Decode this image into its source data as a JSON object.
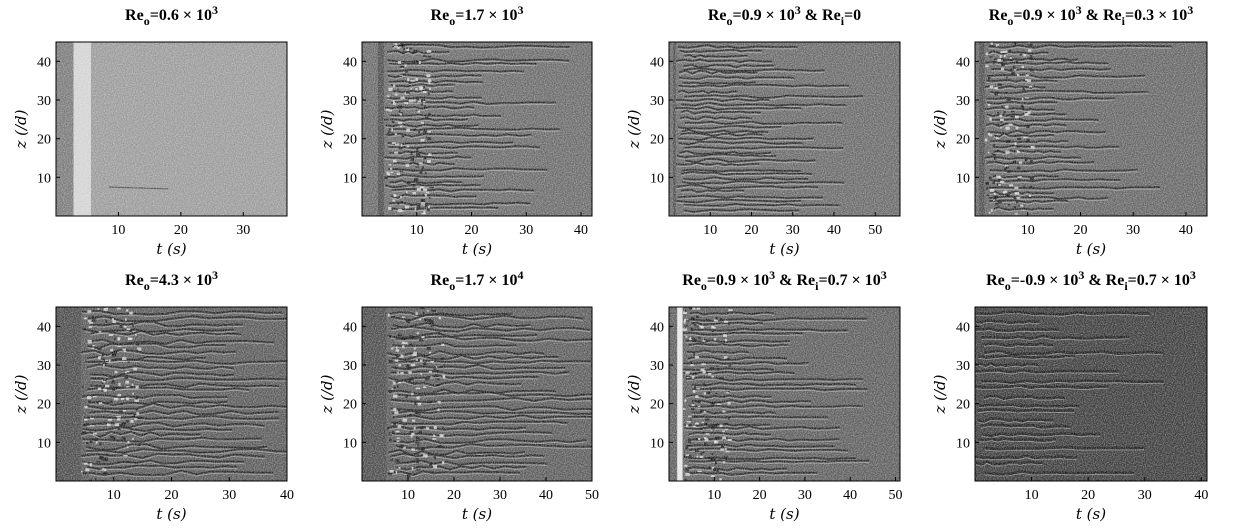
{
  "chart_data": [
    {
      "type": "heatmap",
      "title": {
        "base": "Re",
        "sub": "o",
        "text": "=0.6 × 10",
        "sup": "3"
      },
      "xlabel": "t (s)",
      "ylabel": "z (/d)",
      "xticks": [
        "10",
        "20",
        "30"
      ],
      "yticks": [
        "10",
        "20",
        "30",
        "40"
      ],
      "xlim": [
        0,
        37
      ],
      "ylim": [
        0,
        45
      ],
      "band_t": [
        2.8,
        5.6
      ],
      "grid": false
    },
    {
      "type": "heatmap",
      "title": {
        "base": "Re",
        "sub": "o",
        "text": "=1.7 × 10",
        "sup": "3"
      },
      "xlabel": "t (s)",
      "ylabel": "z (/d)",
      "xticks": [
        "10",
        "20",
        "30",
        "40"
      ],
      "yticks": [
        "10",
        "20",
        "30",
        "40"
      ],
      "xlim": [
        0,
        42
      ],
      "ylim": [
        0,
        45
      ],
      "band_t": [
        2.9,
        4.0
      ],
      "grid": false
    },
    {
      "type": "heatmap",
      "title": {
        "base": "Re",
        "sub": "o",
        "text": "=0.9 × 10",
        "sup": "3",
        "text2": " & Re",
        "sub2": "i",
        "text3": "=0"
      },
      "xlabel": "t (s)",
      "ylabel": "z (/d)",
      "xticks": [
        "10",
        "20",
        "30",
        "40",
        "50"
      ],
      "yticks": [
        "10",
        "20",
        "30",
        "40"
      ],
      "xlim": [
        0,
        56
      ],
      "ylim": [
        0,
        45
      ],
      "band_t": [
        1.0,
        1.6
      ],
      "grid": false
    },
    {
      "type": "heatmap",
      "title": {
        "base": "Re",
        "sub": "o",
        "text": "=0.9 × 10",
        "sup": "3",
        "text2": " & Re",
        "sub2": "i",
        "text3": "=0.3 × 10",
        "sup2": "3"
      },
      "xlabel": "t (s)",
      "ylabel": "z (/d)",
      "xticks": [
        "10",
        "20",
        "30",
        "40"
      ],
      "yticks": [
        "10",
        "20",
        "30",
        "40"
      ],
      "xlim": [
        0,
        44
      ],
      "ylim": [
        0,
        45
      ],
      "band_t": [
        0.8,
        1.8
      ],
      "grid": false
    },
    {
      "type": "heatmap",
      "title": {
        "base": "Re",
        "sub": "o",
        "text": "=4.3 × 10",
        "sup": "3"
      },
      "xlabel": "t (s)",
      "ylabel": "z (/d)",
      "xticks": [
        "10",
        "20",
        "30",
        "40"
      ],
      "yticks": [
        "10",
        "20",
        "30",
        "40"
      ],
      "xlim": [
        0,
        40
      ],
      "ylim": [
        0,
        45
      ],
      "band_t": [
        0.0,
        4.3
      ],
      "grid": false
    },
    {
      "type": "heatmap",
      "title": {
        "base": "Re",
        "sub": "o",
        "text": "=1.7 × 10",
        "sup": "4"
      },
      "xlabel": "t (s)",
      "ylabel": "z (/d)",
      "xticks": [
        "10",
        "20",
        "30",
        "40",
        "50"
      ],
      "yticks": [
        "10",
        "20",
        "30",
        "40"
      ],
      "xlim": [
        0,
        50
      ],
      "ylim": [
        0,
        45
      ],
      "band_t": [
        0.0,
        5.3
      ],
      "grid": false
    },
    {
      "type": "heatmap",
      "title": {
        "base": "Re",
        "sub": "o",
        "text": "=0.9 × 10",
        "sup": "3",
        "text2": " & Re",
        "sub2": "i",
        "text3": "=0.7 × 10",
        "sup2": "3"
      },
      "xlabel": "t (s)",
      "ylabel": "z (/d)",
      "xticks": [
        "10",
        "20",
        "30",
        "40",
        "50"
      ],
      "yticks": [
        "10",
        "20",
        "30",
        "40"
      ],
      "xlim": [
        0,
        51
      ],
      "ylim": [
        0,
        45
      ],
      "band_t": [
        1.8,
        3.0
      ],
      "grid": false
    },
    {
      "type": "heatmap",
      "title": {
        "base": "Re",
        "sub": "o",
        "text": "=-0.9 × 10",
        "sup": "3",
        "text2": " & Re",
        "sub2": "i",
        "text3": "=0.7 × 10",
        "sup2": "3"
      },
      "xlabel": "t (s)",
      "ylabel": "z (/d)",
      "xticks": [
        "10",
        "20",
        "30",
        "40"
      ],
      "yticks": [
        "10",
        "20",
        "30",
        "40"
      ],
      "xlim": [
        0,
        41
      ],
      "ylim": [
        0,
        45
      ],
      "band_t": [
        0.0,
        0.0
      ],
      "grid": false
    }
  ]
}
